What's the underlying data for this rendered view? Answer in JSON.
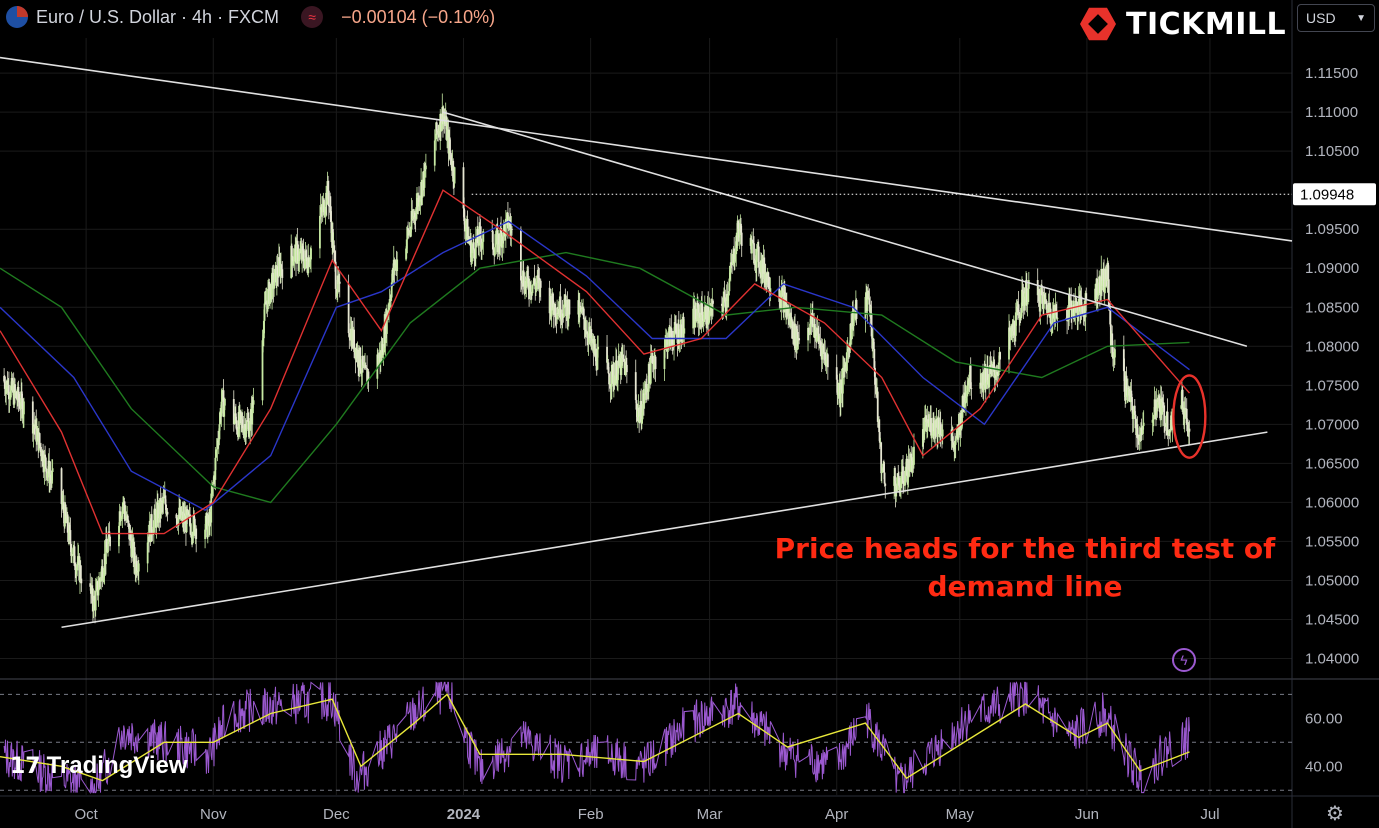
{
  "header": {
    "symbol_title": "Euro / U.S. Dollar · 4h · FXCM",
    "change": "−0.00104 (−0.10%)",
    "indicator_icon": "wave-icon"
  },
  "brand": {
    "name": "TICKMILL"
  },
  "currency_select": {
    "value": "USD"
  },
  "watermark": {
    "text": "TradingView"
  },
  "annotation": {
    "line1": "Price heads for the third test of",
    "line2": "demand line"
  },
  "colors": {
    "candle_up": "#c7e9a3",
    "candle_down": "#e6e6d2",
    "ema_fast": "#e03131",
    "ema_mid": "#2a36c9",
    "ema_slow": "#1f7a1f",
    "trendline": "#e0e0e0",
    "rsi": "#9b59d0",
    "rsi_signal": "#e8e83a",
    "highlight": "#e8322b"
  },
  "chart_data": [
    {
      "type": "candlestick",
      "title": "",
      "timeframe": "4h",
      "ylim": [
        1.0375,
        1.1195
      ],
      "y_ticks": [
        1.115,
        1.11,
        1.105,
        1.095,
        1.09,
        1.085,
        1.08,
        1.075,
        1.07,
        1.065,
        1.06,
        1.055,
        1.05,
        1.045,
        1.04
      ],
      "y_tick_labels": [
        "1.11500",
        "1.11000",
        "1.10500",
        "1.09500",
        "1.09000",
        "1.08500",
        "1.08000",
        "1.07500",
        "1.07000",
        "1.06500",
        "1.06000",
        "1.05500",
        "1.05000",
        "1.04500",
        "1.04000"
      ],
      "x_tick_labels": [
        "Oct",
        "Nov",
        "Dec",
        "2024",
        "Feb",
        "Mar",
        "Apr",
        "May",
        "Jun",
        "Jul"
      ],
      "x_tick_dates": [
        "2023-10-01",
        "2023-11-01",
        "2023-12-01",
        "2024-01-01",
        "2024-02-01",
        "2024-03-01",
        "2024-04-01",
        "2024-05-01",
        "2024-06-01",
        "2024-07-01"
      ],
      "x_range": [
        "2023-09-10",
        "2024-07-21"
      ],
      "current_price": {
        "value": 1.09948,
        "label": "1.09948"
      },
      "price_path": [
        [
          "2023-09-10",
          1.0762
        ],
        [
          "2023-09-14",
          1.0735
        ],
        [
          "2023-09-18",
          1.0705
        ],
        [
          "2023-09-21",
          1.065
        ],
        [
          "2023-09-25",
          1.06
        ],
        [
          "2023-09-28",
          1.053
        ],
        [
          "2023-10-03",
          1.047
        ],
        [
          "2023-10-06",
          1.054
        ],
        [
          "2023-10-10",
          1.06
        ],
        [
          "2023-10-13",
          1.052
        ],
        [
          "2023-10-17",
          1.057
        ],
        [
          "2023-10-20",
          1.06
        ],
        [
          "2023-10-24",
          1.058
        ],
        [
          "2023-10-27",
          1.057
        ],
        [
          "2023-10-31",
          1.057
        ],
        [
          "2023-11-03",
          1.073
        ],
        [
          "2023-11-07",
          1.07
        ],
        [
          "2023-11-10",
          1.07
        ],
        [
          "2023-11-14",
          1.086
        ],
        [
          "2023-11-17",
          1.09
        ],
        [
          "2023-11-21",
          1.092
        ],
        [
          "2023-11-24",
          1.091
        ],
        [
          "2023-11-29",
          1.1
        ],
        [
          "2023-12-01",
          1.088
        ],
        [
          "2023-12-05",
          1.081
        ],
        [
          "2023-12-08",
          1.076
        ],
        [
          "2023-12-12",
          1.079
        ],
        [
          "2023-12-15",
          1.09
        ],
        [
          "2023-12-19",
          1.095
        ],
        [
          "2023-12-22",
          1.101
        ],
        [
          "2023-12-27",
          1.11
        ],
        [
          "2023-12-29",
          1.104
        ],
        [
          "2024-01-03",
          1.092
        ],
        [
          "2024-01-05",
          1.094
        ],
        [
          "2024-01-09",
          1.093
        ],
        [
          "2024-01-12",
          1.096
        ],
        [
          "2024-01-16",
          1.088
        ],
        [
          "2024-01-19",
          1.088
        ],
        [
          "2024-01-23",
          1.085
        ],
        [
          "2024-01-26",
          1.085
        ],
        [
          "2024-01-30",
          1.084
        ],
        [
          "2024-02-02",
          1.079
        ],
        [
          "2024-02-06",
          1.076
        ],
        [
          "2024-02-09",
          1.078
        ],
        [
          "2024-02-13",
          1.071
        ],
        [
          "2024-02-16",
          1.078
        ],
        [
          "2024-02-20",
          1.081
        ],
        [
          "2024-02-23",
          1.082
        ],
        [
          "2024-02-27",
          1.084
        ],
        [
          "2024-03-01",
          1.084
        ],
        [
          "2024-03-05",
          1.086
        ],
        [
          "2024-03-08",
          1.095
        ],
        [
          "2024-03-12",
          1.092
        ],
        [
          "2024-03-15",
          1.089
        ],
        [
          "2024-03-19",
          1.086
        ],
        [
          "2024-03-22",
          1.081
        ],
        [
          "2024-03-26",
          1.083
        ],
        [
          "2024-03-29",
          1.079
        ],
        [
          "2024-04-02",
          1.074
        ],
        [
          "2024-04-05",
          1.084
        ],
        [
          "2024-04-09",
          1.086
        ],
        [
          "2024-04-12",
          1.064
        ],
        [
          "2024-04-16",
          1.062
        ],
        [
          "2024-04-19",
          1.065
        ],
        [
          "2024-04-23",
          1.07
        ],
        [
          "2024-04-26",
          1.07
        ],
        [
          "2024-04-30",
          1.067
        ],
        [
          "2024-05-03",
          1.076
        ],
        [
          "2024-05-07",
          1.076
        ],
        [
          "2024-05-10",
          1.077
        ],
        [
          "2024-05-14",
          1.082
        ],
        [
          "2024-05-17",
          1.087
        ],
        [
          "2024-05-21",
          1.086
        ],
        [
          "2024-05-24",
          1.084
        ],
        [
          "2024-05-28",
          1.085
        ],
        [
          "2024-05-31",
          1.085
        ],
        [
          "2024-06-04",
          1.088
        ],
        [
          "2024-06-06",
          1.089
        ],
        [
          "2024-06-07",
          1.08
        ],
        [
          "2024-06-11",
          1.074
        ],
        [
          "2024-06-14",
          1.068
        ],
        [
          "2024-06-18",
          1.073
        ],
        [
          "2024-06-21",
          1.07
        ],
        [
          "2024-06-24",
          1.073
        ],
        [
          "2024-06-26",
          1.07
        ]
      ],
      "ema_fast_path": [
        [
          "2023-09-10",
          1.082
        ],
        [
          "2023-09-25",
          1.069
        ],
        [
          "2023-10-05",
          1.056
        ],
        [
          "2023-10-20",
          1.056
        ],
        [
          "2023-11-01",
          1.06
        ],
        [
          "2023-11-15",
          1.072
        ],
        [
          "2023-11-30",
          1.091
        ],
        [
          "2023-12-12",
          1.082
        ],
        [
          "2023-12-27",
          1.1
        ],
        [
          "2024-01-10",
          1.095
        ],
        [
          "2024-01-31",
          1.087
        ],
        [
          "2024-02-14",
          1.079
        ],
        [
          "2024-02-28",
          1.081
        ],
        [
          "2024-03-12",
          1.088
        ],
        [
          "2024-03-29",
          1.083
        ],
        [
          "2024-04-12",
          1.076
        ],
        [
          "2024-04-22",
          1.066
        ],
        [
          "2024-05-06",
          1.072
        ],
        [
          "2024-05-21",
          1.084
        ],
        [
          "2024-06-06",
          1.086
        ],
        [
          "2024-06-26",
          1.074
        ]
      ],
      "ema_mid_path": [
        [
          "2023-09-10",
          1.085
        ],
        [
          "2023-09-28",
          1.076
        ],
        [
          "2023-10-12",
          1.064
        ],
        [
          "2023-10-30",
          1.059
        ],
        [
          "2023-11-15",
          1.066
        ],
        [
          "2023-12-01",
          1.085
        ],
        [
          "2023-12-12",
          1.087
        ],
        [
          "2023-12-27",
          1.092
        ],
        [
          "2024-01-12",
          1.096
        ],
        [
          "2024-01-31",
          1.089
        ],
        [
          "2024-02-16",
          1.081
        ],
        [
          "2024-03-05",
          1.081
        ],
        [
          "2024-03-19",
          1.088
        ],
        [
          "2024-04-05",
          1.085
        ],
        [
          "2024-04-22",
          1.076
        ],
        [
          "2024-05-07",
          1.07
        ],
        [
          "2024-05-24",
          1.083
        ],
        [
          "2024-06-06",
          1.085
        ],
        [
          "2024-06-26",
          1.077
        ]
      ],
      "ema_slow_path": [
        [
          "2023-09-10",
          1.09
        ],
        [
          "2023-09-25",
          1.085
        ],
        [
          "2023-10-12",
          1.072
        ],
        [
          "2023-11-01",
          1.062
        ],
        [
          "2023-11-15",
          1.06
        ],
        [
          "2023-12-01",
          1.07
        ],
        [
          "2023-12-19",
          1.083
        ],
        [
          "2024-01-05",
          1.09
        ],
        [
          "2024-01-26",
          1.092
        ],
        [
          "2024-02-13",
          1.09
        ],
        [
          "2024-03-05",
          1.084
        ],
        [
          "2024-03-22",
          1.085
        ],
        [
          "2024-04-12",
          1.084
        ],
        [
          "2024-04-30",
          1.078
        ],
        [
          "2024-05-21",
          1.076
        ],
        [
          "2024-06-06",
          1.08
        ],
        [
          "2024-06-26",
          1.0805
        ]
      ],
      "trendlines": [
        {
          "name": "upper-resistance",
          "from": [
            "2023-09-10",
            1.117
          ],
          "to": [
            "2024-07-21",
            1.0935
          ]
        },
        {
          "name": "inner-resistance",
          "from": [
            "2023-12-27",
            1.11
          ],
          "to": [
            "2024-07-10",
            1.08
          ]
        },
        {
          "name": "demand-line",
          "from": [
            "2023-09-25",
            1.044
          ],
          "to": [
            "2024-07-15",
            1.069
          ]
        }
      ],
      "highlight": {
        "date": "2024-06-25",
        "low": 1.0665,
        "high": 1.0755
      }
    },
    {
      "type": "line",
      "title": "",
      "indicator": "RSI",
      "ylim": [
        28,
        76
      ],
      "y_ticks": [
        60,
        40
      ],
      "y_tick_labels": [
        "60.00",
        "40.00"
      ],
      "levels": [
        70,
        50,
        30
      ],
      "rsi_path": [
        [
          "2023-09-10",
          45
        ],
        [
          "2023-09-20",
          38
        ],
        [
          "2023-10-03",
          30
        ],
        [
          "2023-10-10",
          55
        ],
        [
          "2023-10-20",
          50
        ],
        [
          "2023-10-31",
          45
        ],
        [
          "2023-11-05",
          62
        ],
        [
          "2023-11-20",
          66
        ],
        [
          "2023-11-30",
          68
        ],
        [
          "2023-12-06",
          35
        ],
        [
          "2023-12-20",
          62
        ],
        [
          "2023-12-28",
          72
        ],
        [
          "2024-01-05",
          38
        ],
        [
          "2024-01-15",
          52
        ],
        [
          "2024-01-25",
          42
        ],
        [
          "2024-02-05",
          45
        ],
        [
          "2024-02-14",
          40
        ],
        [
          "2024-02-25",
          58
        ],
        [
          "2024-03-08",
          66
        ],
        [
          "2024-03-20",
          45
        ],
        [
          "2024-04-01",
          40
        ],
        [
          "2024-04-08",
          62
        ],
        [
          "2024-04-16",
          32
        ],
        [
          "2024-05-03",
          60
        ],
        [
          "2024-05-17",
          70
        ],
        [
          "2024-05-28",
          52
        ],
        [
          "2024-06-05",
          62
        ],
        [
          "2024-06-14",
          35
        ],
        [
          "2024-06-21",
          48
        ],
        [
          "2024-06-26",
          52
        ]
      ],
      "signal_path": [
        [
          "2023-09-10",
          44
        ],
        [
          "2023-09-25",
          40
        ],
        [
          "2023-10-05",
          34
        ],
        [
          "2023-10-20",
          50
        ],
        [
          "2023-11-01",
          50
        ],
        [
          "2023-11-15",
          62
        ],
        [
          "2023-11-30",
          68
        ],
        [
          "2023-12-07",
          40
        ],
        [
          "2023-12-20",
          58
        ],
        [
          "2023-12-28",
          70
        ],
        [
          "2024-01-05",
          45
        ],
        [
          "2024-01-25",
          45
        ],
        [
          "2024-02-14",
          42
        ],
        [
          "2024-03-08",
          62
        ],
        [
          "2024-03-20",
          48
        ],
        [
          "2024-04-08",
          58
        ],
        [
          "2024-04-18",
          35
        ],
        [
          "2024-05-17",
          66
        ],
        [
          "2024-05-30",
          52
        ],
        [
          "2024-06-06",
          58
        ],
        [
          "2024-06-14",
          38
        ],
        [
          "2024-06-26",
          46
        ]
      ]
    }
  ]
}
